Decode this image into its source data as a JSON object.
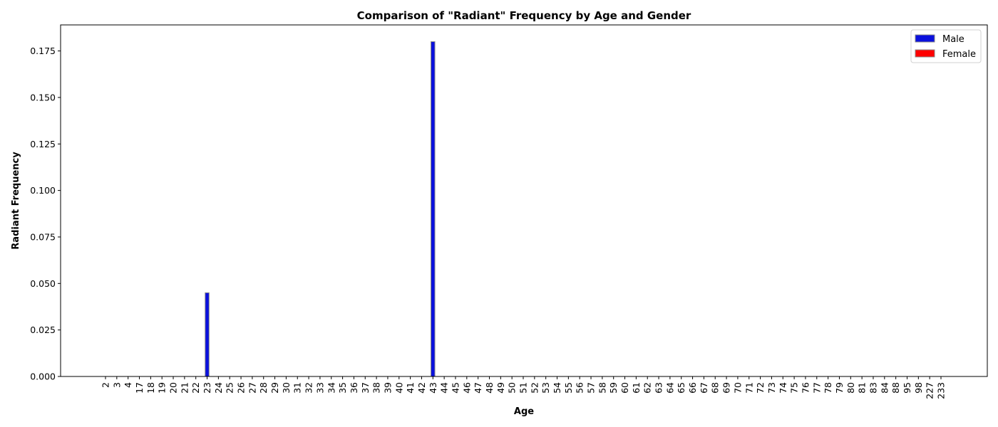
{
  "chart_data": {
    "type": "bar",
    "title": "Comparison of \"Radiant\" Frequency by Age and Gender",
    "xlabel": "Age",
    "ylabel": "Radiant Frequency",
    "ylim": [
      0,
      0.189
    ],
    "yticks": [
      "0.000",
      "0.025",
      "0.050",
      "0.075",
      "0.100",
      "0.125",
      "0.150",
      "0.175"
    ],
    "ytick_values": [
      0,
      0.025,
      0.05,
      0.075,
      0.1,
      0.125,
      0.15,
      0.175
    ],
    "categories": [
      "2",
      "3",
      "4",
      "17",
      "18",
      "19",
      "20",
      "21",
      "22",
      "23",
      "24",
      "25",
      "26",
      "27",
      "28",
      "29",
      "30",
      "31",
      "32",
      "33",
      "34",
      "35",
      "36",
      "37",
      "38",
      "39",
      "40",
      "41",
      "42",
      "43",
      "44",
      "45",
      "46",
      "47",
      "48",
      "49",
      "50",
      "51",
      "52",
      "53",
      "54",
      "55",
      "56",
      "57",
      "58",
      "59",
      "60",
      "61",
      "62",
      "63",
      "64",
      "65",
      "66",
      "67",
      "68",
      "69",
      "70",
      "71",
      "72",
      "73",
      "74",
      "75",
      "76",
      "77",
      "78",
      "79",
      "80",
      "81",
      "83",
      "84",
      "88",
      "95",
      "98",
      "227",
      "233"
    ],
    "series": [
      {
        "name": "Male",
        "color": "#0000ff",
        "values": [
          0,
          0,
          0,
          0,
          0,
          0,
          0,
          0,
          0,
          0.045,
          0,
          0,
          0,
          0,
          0,
          0,
          0,
          0,
          0,
          0,
          0,
          0,
          0,
          0,
          0,
          0,
          0,
          0,
          0,
          0.18,
          0,
          0,
          0,
          0,
          0,
          0,
          0,
          0,
          0,
          0,
          0,
          0,
          0,
          0,
          0,
          0,
          0,
          0,
          0,
          0,
          0,
          0,
          0,
          0,
          0,
          0,
          0,
          0,
          0,
          0,
          0,
          0,
          0,
          0,
          0,
          0,
          0,
          0,
          0,
          0,
          0,
          0,
          0,
          0,
          0
        ]
      },
      {
        "name": "Female",
        "color": "#ff0000",
        "values": [
          0,
          0,
          0,
          0,
          0,
          0,
          0,
          0,
          0,
          0,
          0,
          0,
          0,
          0,
          0,
          0,
          0,
          0,
          0,
          0,
          0,
          0,
          0,
          0,
          0,
          0,
          0,
          0,
          0,
          0,
          0,
          0,
          0,
          0,
          0,
          0,
          0,
          0,
          0,
          0,
          0,
          0,
          0,
          0,
          0,
          0,
          0,
          0,
          0,
          0,
          0,
          0,
          0,
          0,
          0,
          0,
          0,
          0,
          0,
          0,
          0,
          0,
          0,
          0,
          0,
          0,
          0,
          0,
          0,
          0,
          0,
          0,
          0,
          0,
          0
        ]
      }
    ],
    "legend": "top-right",
    "grid": false
  }
}
